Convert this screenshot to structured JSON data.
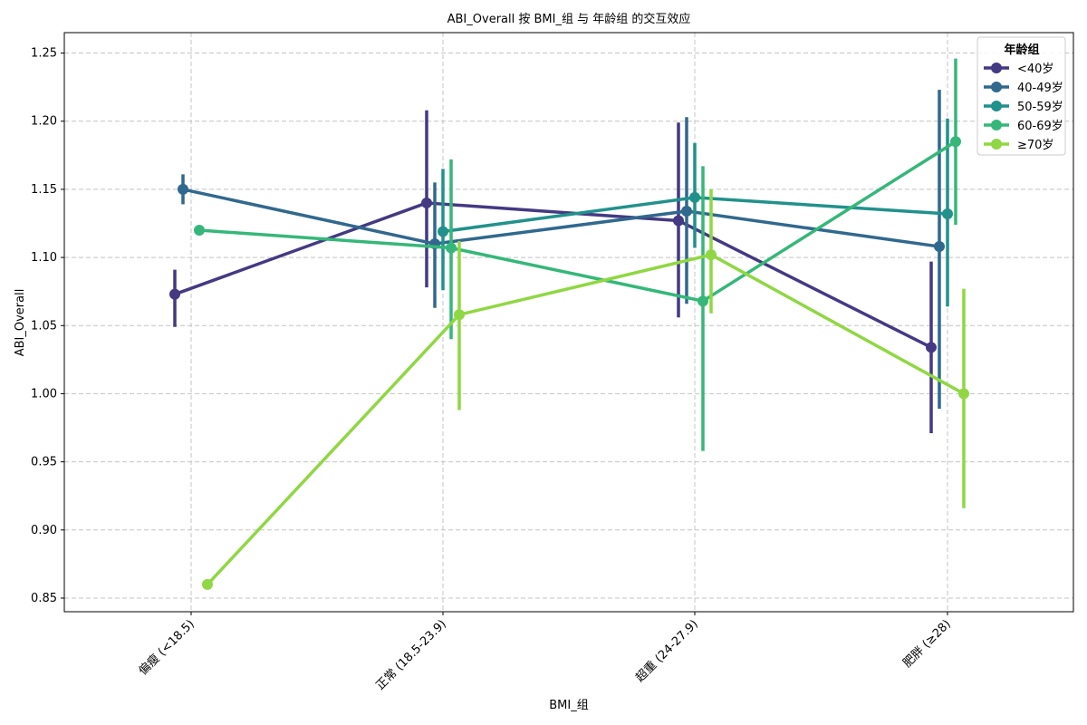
{
  "chart_data": {
    "type": "line",
    "title": "ABI_Overall 按 BMI_组 与 年龄组 的交互效应",
    "xlabel": "BMI_组",
    "ylabel": "ABI_Overall",
    "categories": [
      "偏瘦 (<18.5)",
      "正常 (18.5-23.9)",
      "超重 (24-27.9)",
      "肥胖 (≥28)"
    ],
    "ylim": [
      0.84,
      1.265
    ],
    "yticks": [
      0.85,
      0.9,
      0.95,
      1.0,
      1.05,
      1.1,
      1.15,
      1.2,
      1.25
    ],
    "grid": true,
    "legend": {
      "title": "年龄组",
      "placement": "top-right"
    },
    "error_bars": true,
    "series": [
      {
        "name": "<40岁",
        "color": "#443983",
        "values": [
          1.073,
          1.14,
          1.127,
          1.034
        ],
        "ci_low": [
          1.049,
          1.078,
          1.056,
          0.971
        ],
        "ci_high": [
          1.091,
          1.208,
          1.199,
          1.097
        ]
      },
      {
        "name": "40-49岁",
        "color": "#31688e",
        "values": [
          1.15,
          1.11,
          1.134,
          1.108
        ],
        "ci_low": [
          1.139,
          1.063,
          1.066,
          0.989
        ],
        "ci_high": [
          1.161,
          1.155,
          1.203,
          1.223
        ]
      },
      {
        "name": "50-59岁",
        "color": "#21918c",
        "values": [
          null,
          1.119,
          1.144,
          1.132
        ],
        "ci_low": [
          null,
          1.076,
          1.107,
          1.064
        ],
        "ci_high": [
          null,
          1.165,
          1.184,
          1.202
        ]
      },
      {
        "name": "60-69岁",
        "color": "#35b779",
        "values": [
          1.12,
          1.107,
          1.068,
          1.185
        ],
        "ci_low": [
          1.12,
          1.04,
          0.958,
          1.124
        ],
        "ci_high": [
          1.12,
          1.172,
          1.167,
          1.246
        ]
      },
      {
        "name": "≥70岁",
        "color": "#90d743",
        "values": [
          0.86,
          1.058,
          1.102,
          1.0
        ],
        "ci_low": [
          0.86,
          0.988,
          1.059,
          0.916
        ],
        "ci_high": [
          0.86,
          1.112,
          1.15,
          1.077
        ]
      }
    ]
  }
}
